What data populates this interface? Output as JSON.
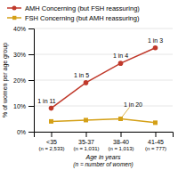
{
  "chart_data": {
    "type": "line",
    "categories": [
      "<35\n(n = 2,533)",
      "35-37\n(n = 1,031)",
      "38-40\n(n = 1,013)",
      "41-45\n(n = 777)"
    ],
    "series": [
      {
        "name": "AMH Concerning (but FSH reassuring)",
        "color": "#c0392b",
        "marker": "circle",
        "values": [
          9.1,
          19.0,
          26.5,
          32.5
        ],
        "annotations": [
          "1 in 11",
          "1 in 5",
          "1 in 4",
          "1 in 3"
        ]
      },
      {
        "name": "FSH Concerning (but AMH reassuring)",
        "color": "#d4a017",
        "marker": "square",
        "values": [
          4.0,
          4.5,
          5.0,
          3.5
        ],
        "annotations": [
          null,
          null,
          "1 in 20",
          null
        ]
      }
    ],
    "ylabel": "% of women per age group",
    "xlabel": "Age in years\n(n = number of women)",
    "ylim": [
      0,
      40
    ],
    "yticks": [
      {
        "value": 0,
        "label": "0%"
      },
      {
        "value": 10,
        "label": "10%"
      },
      {
        "value": 20,
        "label": "20%"
      },
      {
        "value": 30,
        "label": "30%"
      },
      {
        "value": 40,
        "label": "40%"
      }
    ],
    "grid": true,
    "legend": "top"
  }
}
